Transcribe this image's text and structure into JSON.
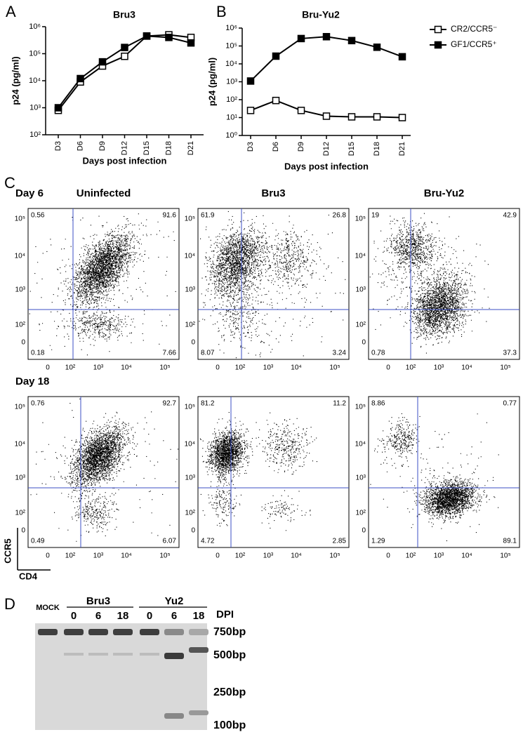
{
  "chart_data": [
    {
      "type": "line",
      "title": "Bru3",
      "ylabel": "p24 (pg/ml)",
      "xlabel": "Days post infection",
      "categories": [
        "D3",
        "D6",
        "D9",
        "D12",
        "D15",
        "D18",
        "D21"
      ],
      "log_y": true,
      "ylim": [
        100,
        1000000
      ],
      "yticks": [
        {
          "value": 100,
          "label": "10²"
        },
        {
          "value": 1000,
          "label": "10³"
        },
        {
          "value": 10000,
          "label": "10⁴"
        },
        {
          "value": 100000,
          "label": "10⁵"
        },
        {
          "value": 1000000,
          "label": "10⁶"
        }
      ],
      "series": [
        {
          "color": "#000000",
          "marker": "open",
          "values": [
            800,
            9000,
            35000,
            80000,
            450000,
            500000,
            400000
          ]
        },
        {
          "color": "#000000",
          "marker": "filled",
          "values": [
            1000,
            12000,
            50000,
            170000,
            450000,
            400000,
            250000
          ]
        }
      ]
    },
    {
      "type": "line",
      "title": "Bru-Yu2",
      "ylabel": "p24 (pg/ml)",
      "xlabel": "Days post infection",
      "categories": [
        "D3",
        "D6",
        "D9",
        "D12",
        "D15",
        "D18",
        "D21"
      ],
      "log_y": true,
      "ylim": [
        1,
        1000000
      ],
      "yticks": [
        {
          "value": 1,
          "label": "10⁰"
        },
        {
          "value": 10,
          "label": "10¹"
        },
        {
          "value": 100,
          "label": "10²"
        },
        {
          "value": 1000,
          "label": "10³"
        },
        {
          "value": 10000,
          "label": "10⁴"
        },
        {
          "value": 100000,
          "label": "10⁵"
        },
        {
          "value": 1000000,
          "label": "10⁶"
        }
      ],
      "legend": "right",
      "series": [
        {
          "name": "CR2/CCR5⁻",
          "color": "#000000",
          "marker": "open",
          "values": [
            25,
            90,
            25,
            12,
            11,
            11,
            10
          ]
        },
        {
          "name": "GF1/CCR5⁺",
          "color": "#000000",
          "marker": "filled",
          "values": [
            1100,
            27000,
            260000,
            330000,
            200000,
            85000,
            25000
          ]
        }
      ]
    }
  ],
  "panels": [
    "A",
    "B",
    "C",
    "D"
  ],
  "flow": {
    "columns": [
      "Uninfected",
      "Bru3",
      "Bru-Yu2"
    ],
    "yticks": [
      "10⁵",
      "10⁴",
      "10³",
      "10²",
      "0"
    ],
    "xticks": [
      "0",
      "10²",
      "10³",
      "10⁴",
      "10⁵"
    ],
    "ylabel": "CCR5",
    "xlabel": "CD4",
    "rows": [
      {
        "label": "Day 6",
        "plots": [
          [
            "0.56",
            "91.6",
            "0.18",
            "7.66"
          ],
          [
            "61.9",
            "26.8",
            "8.07",
            "3.24"
          ],
          [
            "19",
            "42.9",
            "0.78",
            "37.3"
          ]
        ]
      },
      {
        "label": "Day 18",
        "plots": [
          [
            "0.76",
            "92.7",
            "0.49",
            "6.07"
          ],
          [
            "81.2",
            "11.2",
            "4.72",
            "2.85"
          ],
          [
            "8.86",
            "0.77",
            "1.29",
            "89.1"
          ]
        ]
      }
    ]
  },
  "gel": {
    "mock": "MOCK",
    "groups": [
      "Bru3",
      "Yu2"
    ],
    "days": [
      "0",
      "6",
      "18",
      "0",
      "6",
      "18"
    ],
    "day_label": "DPI",
    "markers": [
      "750bp",
      "500bp",
      "250bp",
      "100bp"
    ]
  }
}
